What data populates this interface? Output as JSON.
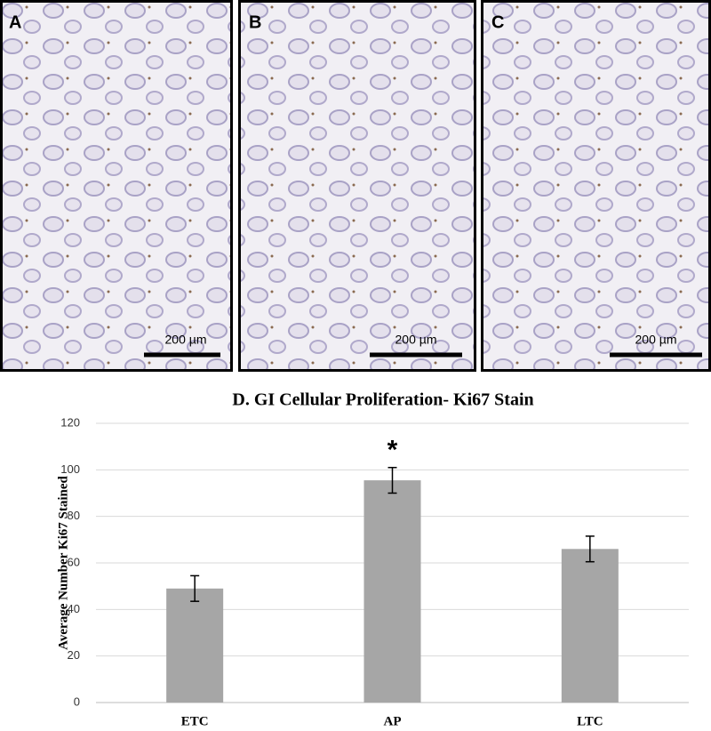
{
  "panels": [
    {
      "label": "A",
      "scale_bar": "200 µm"
    },
    {
      "label": "B",
      "scale_bar": "200 µm"
    },
    {
      "label": "C",
      "scale_bar": "200 µm"
    }
  ],
  "chart_data": {
    "type": "bar",
    "title": "D. GI Cellular Proliferation- Ki67 Stain",
    "y_label": "Average Number Ki67 Stained",
    "categories": [
      "ETC",
      "AP",
      "LTC"
    ],
    "values": [
      49,
      95.5,
      66
    ],
    "errors": [
      5.5,
      5.5,
      5.5
    ],
    "color": "#a6a6a6",
    "ylim": [
      0,
      120
    ],
    "yticks": [
      0,
      20,
      40,
      60,
      80,
      100,
      120
    ],
    "grid": true,
    "annotations": [
      {
        "text": "*",
        "x": "AP"
      }
    ]
  }
}
